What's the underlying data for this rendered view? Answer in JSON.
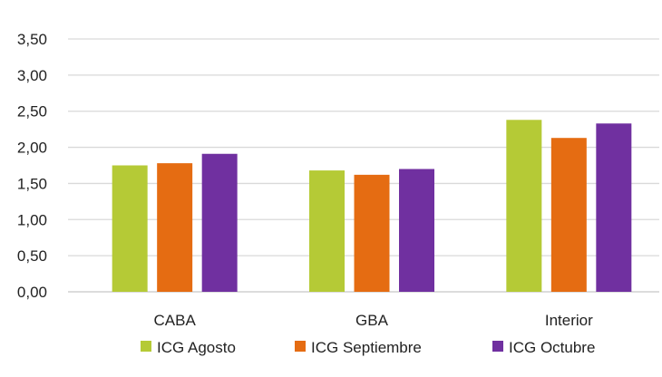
{
  "chart_data": {
    "type": "bar",
    "title": "",
    "xlabel": "",
    "ylabel": "",
    "ylim": [
      0,
      3.5
    ],
    "yticks": [
      "0,00",
      "0,50",
      "1,00",
      "1,50",
      "2,00",
      "2,50",
      "3,00",
      "3,50"
    ],
    "grid": true,
    "legend_position": "bottom",
    "categories": [
      "CABA",
      "GBA",
      "Interior"
    ],
    "series": [
      {
        "name": "ICG Agosto",
        "color": "#b5ca36",
        "values": [
          1.75,
          1.68,
          2.38
        ]
      },
      {
        "name": "ICG Septiembre",
        "color": "#e56c12",
        "values": [
          1.78,
          1.62,
          2.13
        ]
      },
      {
        "name": "ICG Octubre",
        "color": "#7030a0",
        "values": [
          1.91,
          1.7,
          2.33
        ]
      }
    ]
  }
}
